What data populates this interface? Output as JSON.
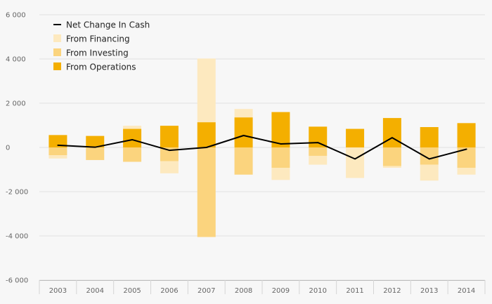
{
  "chart_data": {
    "type": "bar",
    "categories": [
      "2003",
      "2004",
      "2005",
      "2006",
      "2007",
      "2008",
      "2009",
      "2010",
      "2011",
      "2012",
      "2013",
      "2014"
    ],
    "series": [
      {
        "name": "From Operations",
        "kind": "bar",
        "color": "#f4af00",
        "values": [
          560,
          520,
          840,
          980,
          1140,
          1360,
          1600,
          940,
          840,
          1330,
          920,
          1100
        ]
      },
      {
        "name": "From Investing",
        "kind": "bar",
        "color": "#fbd47e",
        "values": [
          -350,
          -570,
          -650,
          -620,
          -4050,
          -1230,
          -920,
          -380,
          0,
          -840,
          -780,
          -920
        ]
      },
      {
        "name": "From Financing",
        "kind": "bar",
        "color": "#fde9bf",
        "values": [
          -150,
          0,
          140,
          -550,
          2880,
          380,
          -550,
          -400,
          -1380,
          -80,
          -720,
          -310
        ]
      },
      {
        "name": "Net Change In Cash",
        "kind": "line",
        "color": "#000000",
        "values": [
          100,
          10,
          350,
          -130,
          0,
          540,
          160,
          220,
          -520,
          440,
          -520,
          -80
        ]
      }
    ],
    "y_ticks": [
      -6000,
      -4000,
      -2000,
      0,
      2000,
      4000,
      6000
    ],
    "y_tick_labels": [
      "-6 000",
      "-4 000",
      "-2 000",
      "0",
      "2 000",
      "4 000",
      "6 000"
    ],
    "ylim": [
      -6000,
      6000
    ],
    "legend": {
      "position": "top-left",
      "items": [
        {
          "label": "Net Change In Cash",
          "marker": "line",
          "color": "#000000"
        },
        {
          "label": "From Financing",
          "marker": "square",
          "color": "#fde9bf"
        },
        {
          "label": "From Investing",
          "marker": "square",
          "color": "#fbd47e"
        },
        {
          "label": "From Operations",
          "marker": "square",
          "color": "#f4af00"
        }
      ]
    },
    "gridlines": true
  }
}
